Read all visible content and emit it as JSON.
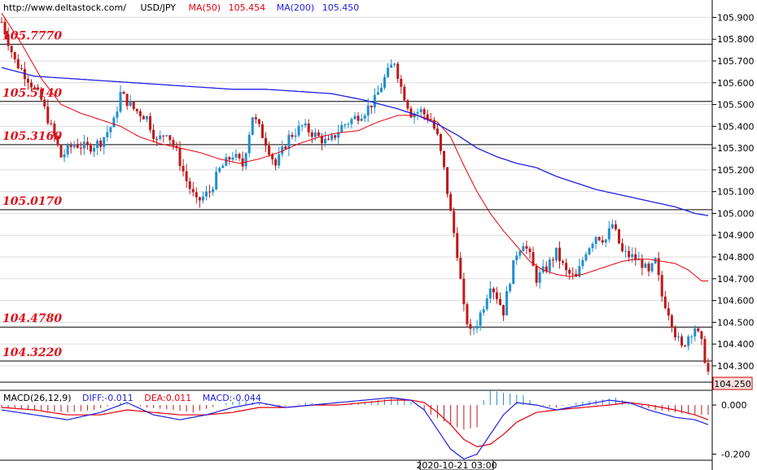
{
  "header": {
    "url": "http://www.deltastock.com/",
    "symbol": "USD/JPY",
    "ma50_label": "MA(50)",
    "ma50_value": "105.454",
    "ma200_label": "MA(200)",
    "ma200_value": "105.450"
  },
  "macd_header": {
    "title": "MACD(26,12,9)",
    "diff": "DIFF:-0.011",
    "dea": "DEA:0.011",
    "macd": "MACD:-0.044"
  },
  "colors": {
    "ma50": "#e8000b",
    "ma200": "#1f1fe0",
    "bull": "#1f8fd0",
    "bear": "#c0181a",
    "level_text": "#e0101a",
    "grid": "#dcdcdc",
    "price_box_fill": "#fde0e0",
    "price_box_stroke": "#cc0000"
  },
  "chart_data": {
    "type": "candlestick",
    "price_axis": {
      "ylim": [
        104.225,
        105.98
      ],
      "ticks": [
        "105.900",
        "105.800",
        "105.700",
        "105.600",
        "105.500",
        "105.400",
        "105.300",
        "105.200",
        "105.100",
        "105.000",
        "104.900",
        "104.800",
        "104.700",
        "104.600",
        "104.500",
        "104.400",
        "104.300"
      ]
    },
    "last_price": "104.250",
    "levels": [
      "105.7770",
      "105.5140",
      "105.3160",
      "105.0170",
      "104.4780",
      "104.3220"
    ],
    "time_label": "2020-10-21 03:00",
    "macd_axis": {
      "ylim": [
        -0.225,
        0.06
      ],
      "ticks": [
        "0.000",
        "-0.200"
      ]
    },
    "close_path": [
      [
        0,
        105.88
      ],
      [
        4,
        105.7
      ],
      [
        8,
        105.62
      ],
      [
        12,
        105.52
      ],
      [
        16,
        105.35
      ],
      [
        18,
        105.26
      ],
      [
        22,
        105.32
      ],
      [
        26,
        105.3
      ],
      [
        30,
        105.33
      ],
      [
        34,
        105.42
      ],
      [
        36,
        105.55
      ],
      [
        40,
        105.48
      ],
      [
        44,
        105.44
      ],
      [
        47,
        105.33
      ],
      [
        50,
        105.38
      ],
      [
        53,
        105.28
      ],
      [
        56,
        105.15
      ],
      [
        59,
        105.05
      ],
      [
        63,
        105.1
      ],
      [
        66,
        105.2
      ],
      [
        70,
        105.27
      ],
      [
        73,
        105.22
      ],
      [
        76,
        105.45
      ],
      [
        80,
        105.33
      ],
      [
        83,
        105.22
      ],
      [
        87,
        105.35
      ],
      [
        91,
        105.4
      ],
      [
        95,
        105.36
      ],
      [
        99,
        105.32
      ],
      [
        103,
        105.4
      ],
      [
        106,
        105.43
      ],
      [
        110,
        105.47
      ],
      [
        113,
        105.52
      ],
      [
        116,
        105.62
      ],
      [
        119,
        105.7
      ],
      [
        121,
        105.58
      ],
      [
        124,
        105.46
      ],
      [
        127,
        105.47
      ],
      [
        130,
        105.43
      ],
      [
        132,
        105.35
      ],
      [
        134,
        105.2
      ],
      [
        136,
        105.0
      ],
      [
        138,
        104.82
      ],
      [
        140,
        104.56
      ],
      [
        142,
        104.45
      ],
      [
        144,
        104.5
      ],
      [
        146,
        104.58
      ],
      [
        148,
        104.68
      ],
      [
        150,
        104.62
      ],
      [
        152,
        104.55
      ],
      [
        154,
        104.7
      ],
      [
        156,
        104.82
      ],
      [
        158,
        104.87
      ],
      [
        160,
        104.8
      ],
      [
        162,
        104.7
      ],
      [
        165,
        104.75
      ],
      [
        168,
        104.82
      ],
      [
        171,
        104.73
      ],
      [
        174,
        104.7
      ],
      [
        177,
        104.83
      ],
      [
        180,
        104.9
      ],
      [
        183,
        104.88
      ],
      [
        185,
        104.95
      ],
      [
        188,
        104.82
      ],
      [
        191,
        104.8
      ],
      [
        194,
        104.77
      ],
      [
        196,
        104.72
      ],
      [
        198,
        104.78
      ],
      [
        200,
        104.62
      ],
      [
        202,
        104.55
      ],
      [
        204,
        104.45
      ],
      [
        206,
        104.38
      ],
      [
        208,
        104.44
      ],
      [
        210,
        104.48
      ],
      [
        212,
        104.4
      ],
      [
        214,
        104.27
      ]
    ],
    "series": [
      {
        "name": "MA(50)",
        "values": [
          [
            0,
            105.92
          ],
          [
            6,
            105.78
          ],
          [
            12,
            105.62
          ],
          [
            18,
            105.5
          ],
          [
            24,
            105.46
          ],
          [
            30,
            105.43
          ],
          [
            36,
            105.4
          ],
          [
            42,
            105.35
          ],
          [
            48,
            105.32
          ],
          [
            54,
            105.3
          ],
          [
            60,
            105.28
          ],
          [
            66,
            105.25
          ],
          [
            72,
            105.23
          ],
          [
            78,
            105.25
          ],
          [
            84,
            105.28
          ],
          [
            90,
            105.32
          ],
          [
            96,
            105.35
          ],
          [
            102,
            105.37
          ],
          [
            108,
            105.38
          ],
          [
            114,
            105.42
          ],
          [
            120,
            105.45
          ],
          [
            126,
            105.45
          ],
          [
            132,
            105.42
          ],
          [
            136,
            105.35
          ],
          [
            140,
            105.22
          ],
          [
            144,
            105.1
          ],
          [
            148,
            105.0
          ],
          [
            152,
            104.92
          ],
          [
            156,
            104.85
          ],
          [
            160,
            104.78
          ],
          [
            164,
            104.74
          ],
          [
            168,
            104.72
          ],
          [
            172,
            104.71
          ],
          [
            176,
            104.72
          ],
          [
            180,
            104.74
          ],
          [
            184,
            104.76
          ],
          [
            188,
            104.78
          ],
          [
            192,
            104.79
          ],
          [
            196,
            104.79
          ],
          [
            200,
            104.78
          ],
          [
            204,
            104.77
          ],
          [
            208,
            104.74
          ],
          [
            212,
            104.69
          ]
        ]
      },
      {
        "name": "MA(200)",
        "values": [
          [
            0,
            105.67
          ],
          [
            10,
            105.63
          ],
          [
            20,
            105.62
          ],
          [
            30,
            105.61
          ],
          [
            40,
            105.6
          ],
          [
            50,
            105.59
          ],
          [
            60,
            105.58
          ],
          [
            70,
            105.57
          ],
          [
            80,
            105.57
          ],
          [
            90,
            105.56
          ],
          [
            100,
            105.55
          ],
          [
            110,
            105.52
          ],
          [
            120,
            105.48
          ],
          [
            126,
            105.45
          ],
          [
            132,
            105.41
          ],
          [
            138,
            105.36
          ],
          [
            144,
            105.3
          ],
          [
            150,
            105.26
          ],
          [
            156,
            105.23
          ],
          [
            162,
            105.21
          ],
          [
            168,
            105.17
          ],
          [
            174,
            105.14
          ],
          [
            180,
            105.11
          ],
          [
            186,
            105.09
          ],
          [
            192,
            105.07
          ],
          [
            198,
            105.05
          ],
          [
            204,
            105.03
          ],
          [
            210,
            105.0
          ],
          [
            214,
            104.99
          ]
        ]
      }
    ],
    "macd_bars": [
      [
        0,
        -0.01
      ],
      [
        10,
        -0.02
      ],
      [
        20,
        -0.03
      ],
      [
        28,
        -0.02
      ],
      [
        36,
        0.01
      ],
      [
        44,
        -0.01
      ],
      [
        52,
        -0.02
      ],
      [
        58,
        -0.03
      ],
      [
        66,
        0.0
      ],
      [
        72,
        0.02
      ],
      [
        78,
        0.01
      ],
      [
        84,
        -0.01
      ],
      [
        92,
        0.01
      ],
      [
        100,
        0.0
      ],
      [
        108,
        0.01
      ],
      [
        114,
        0.02
      ],
      [
        120,
        0.03
      ],
      [
        126,
        0.0
      ],
      [
        130,
        -0.04
      ],
      [
        136,
        -0.08
      ],
      [
        140,
        -0.1
      ],
      [
        144,
        -0.09
      ],
      [
        146,
        0.02
      ],
      [
        148,
        0.06
      ],
      [
        152,
        0.05
      ],
      [
        158,
        0.04
      ],
      [
        162,
        0.0
      ],
      [
        168,
        -0.01
      ],
      [
        174,
        0.01
      ],
      [
        180,
        0.02
      ],
      [
        186,
        0.03
      ],
      [
        192,
        0.0
      ],
      [
        198,
        -0.02
      ],
      [
        204,
        -0.03
      ],
      [
        210,
        -0.04
      ],
      [
        214,
        -0.04
      ]
    ],
    "macd_diff": [
      [
        0,
        -0.02
      ],
      [
        10,
        -0.04
      ],
      [
        20,
        -0.06
      ],
      [
        30,
        -0.03
      ],
      [
        38,
        0.01
      ],
      [
        46,
        -0.04
      ],
      [
        54,
        -0.06
      ],
      [
        62,
        -0.04
      ],
      [
        70,
        -0.01
      ],
      [
        78,
        0.01
      ],
      [
        86,
        -0.01
      ],
      [
        94,
        0.0
      ],
      [
        102,
        0.01
      ],
      [
        110,
        0.02
      ],
      [
        118,
        0.03
      ],
      [
        124,
        0.02
      ],
      [
        128,
        -0.02
      ],
      [
        132,
        -0.1
      ],
      [
        136,
        -0.18
      ],
      [
        140,
        -0.22
      ],
      [
        144,
        -0.2
      ],
      [
        148,
        -0.12
      ],
      [
        152,
        -0.04
      ],
      [
        156,
        0.01
      ],
      [
        162,
        0.0
      ],
      [
        168,
        -0.02
      ],
      [
        176,
        0.0
      ],
      [
        184,
        0.02
      ],
      [
        190,
        0.01
      ],
      [
        196,
        -0.02
      ],
      [
        204,
        -0.05
      ],
      [
        210,
        -0.06
      ],
      [
        214,
        -0.08
      ]
    ],
    "macd_dea": [
      [
        0,
        -0.01
      ],
      [
        10,
        -0.02
      ],
      [
        20,
        -0.04
      ],
      [
        30,
        -0.04
      ],
      [
        38,
        -0.02
      ],
      [
        46,
        -0.03
      ],
      [
        54,
        -0.04
      ],
      [
        62,
        -0.04
      ],
      [
        70,
        -0.03
      ],
      [
        78,
        -0.01
      ],
      [
        86,
        -0.01
      ],
      [
        94,
        0.0
      ],
      [
        102,
        0.0
      ],
      [
        110,
        0.01
      ],
      [
        118,
        0.02
      ],
      [
        124,
        0.02
      ],
      [
        128,
        0.01
      ],
      [
        132,
        -0.03
      ],
      [
        136,
        -0.08
      ],
      [
        140,
        -0.14
      ],
      [
        144,
        -0.17
      ],
      [
        148,
        -0.16
      ],
      [
        152,
        -0.12
      ],
      [
        156,
        -0.07
      ],
      [
        162,
        -0.03
      ],
      [
        168,
        -0.02
      ],
      [
        176,
        -0.01
      ],
      [
        184,
        0.0
      ],
      [
        190,
        0.01
      ],
      [
        196,
        0.0
      ],
      [
        204,
        -0.02
      ],
      [
        210,
        -0.04
      ],
      [
        214,
        -0.06
      ]
    ]
  }
}
